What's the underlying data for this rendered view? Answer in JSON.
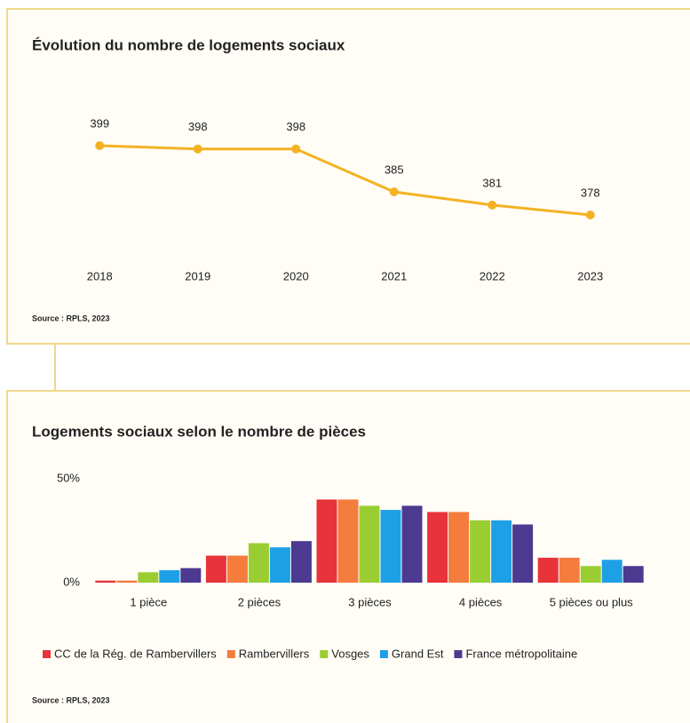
{
  "chart_data": [
    {
      "type": "line",
      "title": "Évolution du nombre de logements sociaux",
      "categories": [
        "2018",
        "2019",
        "2020",
        "2021",
        "2022",
        "2023"
      ],
      "values": [
        399,
        398,
        398,
        385,
        381,
        378
      ],
      "color": "#f4b223",
      "source": "Source : RPLS, 2023"
    },
    {
      "type": "bar",
      "title": "Logements sociaux selon le nombre de pièces",
      "categories": [
        "1 pièce",
        "2 pièces",
        "3 pièces",
        "4 pièces",
        "5 pièces ou plus"
      ],
      "series": [
        {
          "name": "CC de la Rég. de Rambervillers",
          "color": "#e8333a",
          "values": [
            1,
            13,
            40,
            34,
            12
          ]
        },
        {
          "name": "Rambervillers",
          "color": "#f47c3c",
          "values": [
            1,
            13,
            40,
            34,
            12
          ]
        },
        {
          "name": "Vosges",
          "color": "#9acd32",
          "values": [
            5,
            19,
            37,
            30,
            8
          ]
        },
        {
          "name": "Grand Est",
          "color": "#1ea0e6",
          "values": [
            6,
            17,
            35,
            30,
            11
          ]
        },
        {
          "name": "France métropolitaine",
          "color": "#4b3a8f",
          "values": [
            7,
            20,
            37,
            28,
            8
          ]
        }
      ],
      "ylim": [
        0,
        50
      ],
      "yticks": [
        {
          "value": 0,
          "label": "0%"
        },
        {
          "value": 50,
          "label": "50%"
        }
      ],
      "legend": "bottom",
      "source": "Source : RPLS, 2023"
    }
  ]
}
